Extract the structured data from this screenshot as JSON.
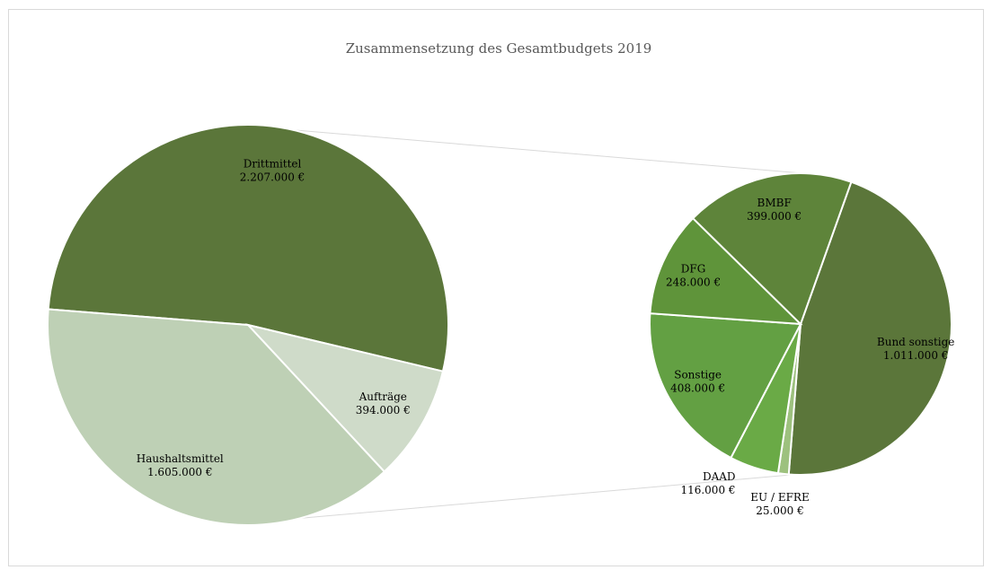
{
  "chart_data": [
    {
      "type": "pie",
      "title": "Zusammensetzung des Gesamtbudgets 2019",
      "categories": [
        "Drittmittel",
        "Aufträge",
        "Haushaltsmittel"
      ],
      "values": [
        2207000,
        394000,
        1605000
      ],
      "value_labels": [
        "2.207.000 €",
        "394.000 €",
        "1.605.000 €"
      ],
      "colors": [
        "#5b763a",
        "#cfdbc9",
        "#bed0b5"
      ]
    },
    {
      "type": "pie",
      "categories": [
        "Bund sonstige",
        "EU / EFRE",
        "DAAD",
        "Sonstige",
        "DFG",
        "BMBF"
      ],
      "values": [
        1011000,
        25000,
        116000,
        408000,
        248000,
        399000
      ],
      "value_labels": [
        "1.011.000 €",
        "25.000 €",
        "116.000 €",
        "408.000 €",
        "248.000 €",
        "399.000 €"
      ],
      "colors": [
        "#5b763a",
        "#9dc17e",
        "#6aaa46",
        "#63a043",
        "#5f943a",
        "#5e843a"
      ]
    }
  ]
}
